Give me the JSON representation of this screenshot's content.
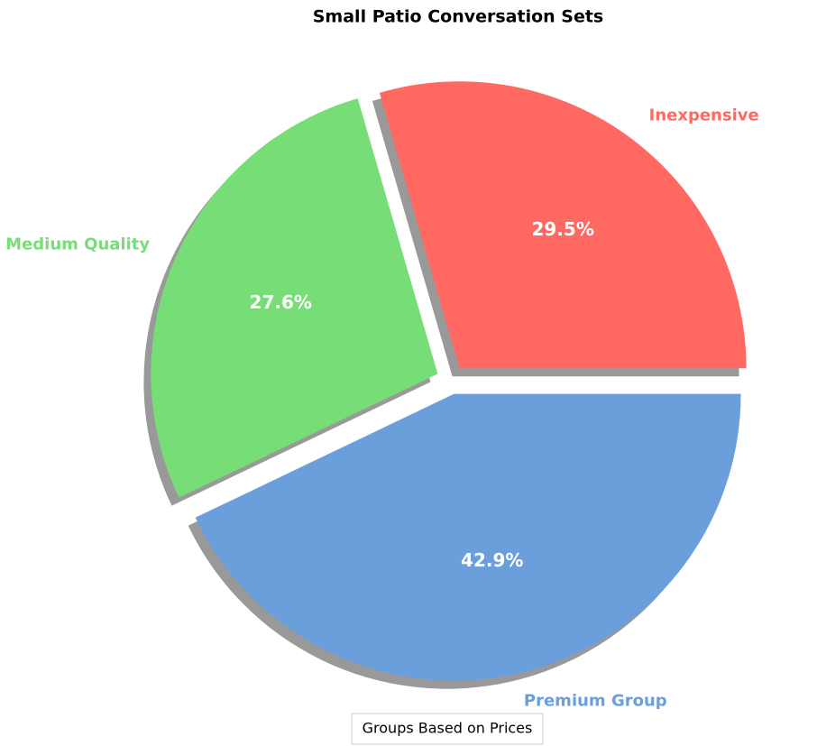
{
  "chart_data": {
    "type": "pie",
    "title": "Small Patio Conversation Sets",
    "categories": [
      "Inexpensive",
      "Medium Quality",
      "Premium Group"
    ],
    "values": [
      29.5,
      27.6,
      42.9
    ],
    "value_labels": [
      "29.5%",
      "27.6%",
      "42.9%"
    ],
    "colors": [
      "#ff6961",
      "#77dd77",
      "#6a9fdc"
    ],
    "legend_title": "Groups Based on Prices",
    "shadow": true
  }
}
